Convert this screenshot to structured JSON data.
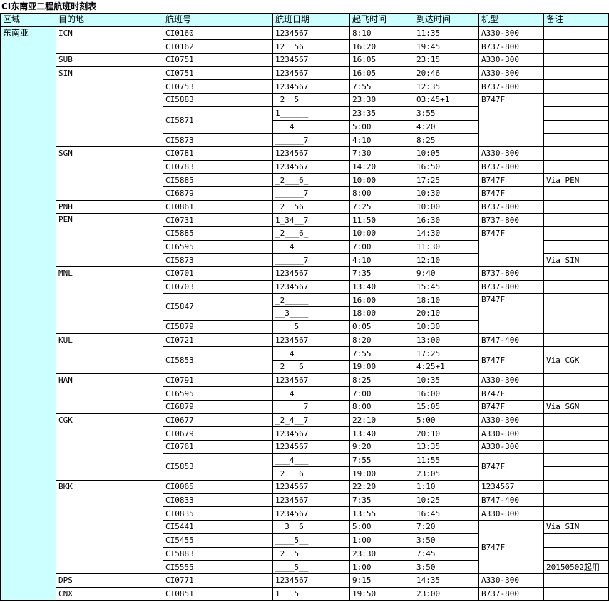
{
  "title": "CI东南亚二程航班时刻表",
  "table": {
    "headers": [
      "区域",
      "目的地",
      "航班号",
      "航班日期",
      "起飞时间",
      "到达时间",
      "机型",
      "备注"
    ],
    "rows": [
      [
        {
          "t": "东南亚",
          "rs": 43
        },
        {
          "t": "ICN",
          "rs": 2
        },
        "CI0160",
        "1234567",
        "8:10",
        "11:35",
        "A330-300",
        ""
      ],
      [
        "CI0162",
        "12__56_",
        "16:20",
        "19:45",
        "B737-800",
        ""
      ],
      [
        "SUB",
        "CI0751",
        "1234567",
        "16:05",
        "23:15",
        "A330-300",
        ""
      ],
      [
        {
          "t": "SIN",
          "rs": 6
        },
        "CI0751",
        "1234567",
        "16:05",
        "20:46",
        "A330-300",
        ""
      ],
      [
        "CI0753",
        "1234567",
        "7:55",
        "12:35",
        "B737-800",
        ""
      ],
      [
        "CI5883",
        "_2__5__",
        "23:30",
        "03:45+1",
        {
          "t": "B747F",
          "rs": 4
        },
        ""
      ],
      [
        {
          "t": "CI5871",
          "rs": 2
        },
        "1______",
        "23:35",
        "3:55",
        ""
      ],
      [
        "___4___",
        "5:00",
        "4:20",
        ""
      ],
      [
        "CI5873",
        "______7",
        "4:10",
        "8:25",
        ""
      ],
      [
        {
          "t": "SGN",
          "rs": 4
        },
        "CI0781",
        "1234567",
        "7:30",
        "10:05",
        "A330-300",
        ""
      ],
      [
        "CI0783",
        "1234567",
        "14:20",
        "16:50",
        "B737-800",
        ""
      ],
      [
        "CI5885",
        "_2___6_",
        "10:00",
        "17:25",
        "B747F",
        "Via PEN"
      ],
      [
        "CI6879",
        "______7",
        "8:00",
        "10:30",
        "B747F",
        ""
      ],
      [
        "PNH",
        "CI0861",
        "_2__56_",
        "7:25",
        "10:00",
        "B737-800",
        ""
      ],
      [
        {
          "t": "PEN",
          "rs": 4
        },
        "CI0731",
        "1_34__7",
        "11:50",
        "16:30",
        "B737-800",
        ""
      ],
      [
        "CI5885",
        "_2___6_",
        "10:00",
        "14:30",
        {
          "t": "B747F",
          "rs": 3
        },
        ""
      ],
      [
        "CI6595",
        "___4___",
        "7:00",
        "11:30",
        ""
      ],
      [
        "CI5873",
        "______7",
        "4:10",
        "12:10",
        "Via SIN"
      ],
      [
        {
          "t": "MNL",
          "rs": 5
        },
        "CI0701",
        "1234567",
        "7:35",
        "9:40",
        "B737-800",
        ""
      ],
      [
        "CI0703",
        "1234567",
        "13:40",
        "15:45",
        "B737-800",
        ""
      ],
      [
        {
          "t": "CI5847",
          "rs": 2
        },
        "_2_____",
        "16:00",
        "18:10",
        {
          "t": "B747F",
          "rs": 3
        },
        {
          "t": "",
          "rs": 3
        }
      ],
      [
        "__3____",
        "18:00",
        "20:10"
      ],
      [
        "CI5879",
        "____5__",
        "0:05",
        "10:30"
      ],
      [
        {
          "t": "KUL",
          "rs": 3
        },
        "CI0721",
        "1234567",
        "8:20",
        "13:00",
        "B747-400",
        ""
      ],
      [
        {
          "t": "CI5853",
          "rs": 2
        },
        "___4___",
        "7:55",
        "17:25",
        {
          "t": "B747F",
          "rs": 2
        },
        {
          "t": "Via CGK",
          "rs": 2
        }
      ],
      [
        "_2___6_",
        "19:00",
        "4:25+1"
      ],
      [
        {
          "t": "HAN",
          "rs": 3
        },
        "CI0791",
        "1234567",
        "8:25",
        "10:35",
        "A330-300",
        ""
      ],
      [
        "CI6595",
        "___4___",
        "7:00",
        "16:00",
        "B747F",
        ""
      ],
      [
        "CI6879",
        "______7",
        "8:00",
        "15:05",
        "B747F",
        "Via SGN"
      ],
      [
        {
          "t": "CGK",
          "rs": 5
        },
        "CI0677",
        "_2_4__7",
        "22:10",
        "5:00",
        "A330-300",
        ""
      ],
      [
        "CI0679",
        "1234567",
        "13:40",
        "20:10",
        "A330-300",
        ""
      ],
      [
        "CI0761",
        "1234567",
        "9:20",
        "13:35",
        "A330-300",
        ""
      ],
      [
        {
          "t": "CI5853",
          "rs": 2
        },
        "___4___",
        "7:55",
        "11:55",
        {
          "t": "B747F",
          "rs": 2
        },
        ""
      ],
      [
        "_2___6_",
        "19:00",
        "23:05",
        ""
      ],
      [
        {
          "t": "BKK",
          "rs": 7
        },
        "CI0065",
        "1234567",
        "22:20",
        "1:10",
        "1234567",
        ""
      ],
      [
        "CI0833",
        "1234567",
        "7:35",
        "10:25",
        "B747-400",
        ""
      ],
      [
        "CI0835",
        "1234567",
        "13:55",
        "16:45",
        "A330-300",
        ""
      ],
      [
        "CI5441",
        "__3__6_",
        "5:00",
        "7:20",
        {
          "t": "B747F",
          "rs": 4
        },
        "Via SIN"
      ],
      [
        "CI5455",
        "____5__",
        "1:00",
        "3:50",
        ""
      ],
      [
        "CI5883",
        "_2__5__",
        "23:30",
        "7:45",
        ""
      ],
      [
        "CI5555",
        "____5__",
        "1:00",
        "3:50",
        "20150502起用"
      ],
      [
        "DPS",
        "CI0771",
        "1234567",
        "9:15",
        "14:35",
        "A330-300",
        ""
      ],
      [
        "CNX",
        "CI0851",
        "1___5__",
        "19:50",
        "23:00",
        "B737-800",
        ""
      ]
    ]
  }
}
